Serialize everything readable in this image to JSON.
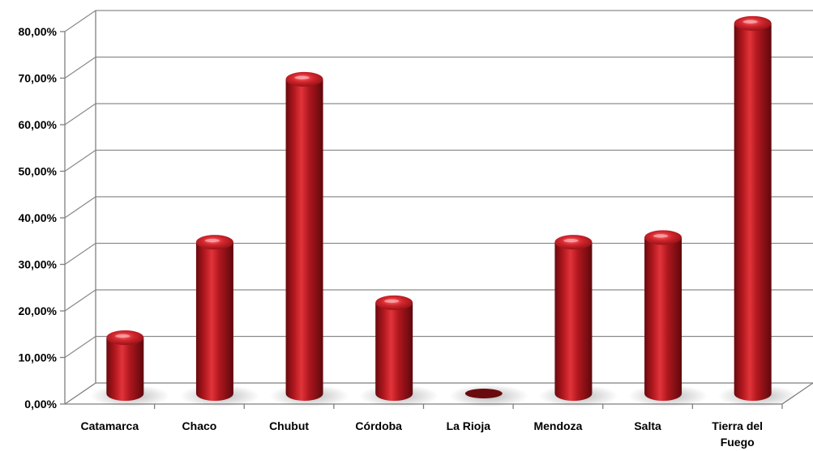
{
  "chart_data": {
    "type": "bar",
    "title": "",
    "xlabel": "",
    "ylabel": "",
    "categories": [
      "Catamarca",
      "Chaco",
      "Chubut",
      "Córdoba",
      "La Rioja",
      "Mendoza",
      "Salta",
      "Tierra del Fuego"
    ],
    "category_lines": [
      [
        "Catamarca"
      ],
      [
        "Chaco"
      ],
      [
        "Chubut"
      ],
      [
        "Córdoba"
      ],
      [
        "La Rioja"
      ],
      [
        "Mendoza"
      ],
      [
        "Salta"
      ],
      [
        "Tierra del",
        "Fuego"
      ]
    ],
    "values": [
      12.0,
      32.5,
      67.5,
      19.5,
      0.0,
      32.5,
      33.5,
      79.5
    ],
    "value_format": "percent",
    "ylim": [
      0,
      80
    ],
    "yticks": [
      "0,00%",
      "10,00%",
      "20,00%",
      "30,00%",
      "40,00%",
      "50,00%",
      "60,00%",
      "70,00%",
      "80,00%"
    ],
    "grid": true,
    "legend": "none",
    "bar_style": "3d-cylinder",
    "colors": {
      "bar_light": "#e2333a",
      "bar_mid": "#b0171e",
      "bar_dark": "#6a0a0e",
      "grid": "#8c8c8c",
      "axis": "#7f7f7f"
    }
  }
}
